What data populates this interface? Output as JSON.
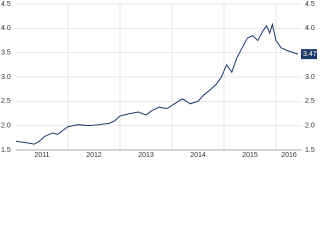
{
  "chart_data": {
    "type": "line",
    "x": [
      2011.0,
      2011.2,
      2011.35,
      2011.45,
      2011.55,
      2011.7,
      2011.8,
      2011.9,
      2012.0,
      2012.2,
      2012.4,
      2012.6,
      2012.8,
      2012.9,
      2013.0,
      2013.2,
      2013.35,
      2013.5,
      2013.6,
      2013.75,
      2013.9,
      2014.05,
      2014.2,
      2014.35,
      2014.5,
      2014.6,
      2014.75,
      2014.85,
      2014.95,
      2015.05,
      2015.15,
      2015.25,
      2015.35,
      2015.45,
      2015.55,
      2015.65,
      2015.75,
      2015.82,
      2015.88,
      2015.93,
      2016.0,
      2016.1,
      2016.2,
      2016.42
    ],
    "series": [
      {
        "color": "#1f3a6b",
        "values": [
          1.68,
          1.65,
          1.62,
          1.68,
          1.78,
          1.85,
          1.82,
          1.9,
          1.98,
          2.02,
          2.0,
          2.02,
          2.05,
          2.1,
          2.2,
          2.25,
          2.28,
          2.22,
          2.3,
          2.38,
          2.35,
          2.45,
          2.55,
          2.45,
          2.5,
          2.62,
          2.75,
          2.85,
          3.0,
          3.25,
          3.1,
          3.4,
          3.6,
          3.8,
          3.85,
          3.75,
          3.95,
          4.05,
          3.9,
          4.08,
          3.75,
          3.6,
          3.55,
          3.47
        ]
      }
    ],
    "xlim": [
      2011.0,
      2016.5
    ],
    "xticks": [
      {
        "value": 2011.5,
        "label": "2011"
      },
      {
        "value": 2012.5,
        "label": "2012"
      },
      {
        "value": 2013.5,
        "label": "2013"
      },
      {
        "value": 2014.5,
        "label": "2014"
      },
      {
        "value": 2015.5,
        "label": "2015"
      },
      {
        "value": 2016.25,
        "label": "2016"
      }
    ],
    "xgrid": [
      2012,
      2013,
      2014,
      2015,
      2016
    ],
    "ylim": [
      1.5,
      4.5
    ],
    "yticks": [
      1.5,
      {
        "value": 2.0,
        "label": "2.0"
      },
      2.5,
      {
        "value": 3.0,
        "label": "3.0"
      },
      3.5,
      {
        "value": 4.0,
        "label": "4.0"
      },
      4.5
    ],
    "y2lim": [
      1.5,
      4.5
    ],
    "y2ticks": [
      1.5,
      {
        "value": 2.0,
        "label": "2.0"
      },
      2.5,
      {
        "value": 3.0,
        "label": "3.0"
      },
      3.5,
      {
        "value": 4.0,
        "label": "4.0"
      },
      4.5
    ],
    "grid": true,
    "last_value_color": "#1f3a6b"
  }
}
